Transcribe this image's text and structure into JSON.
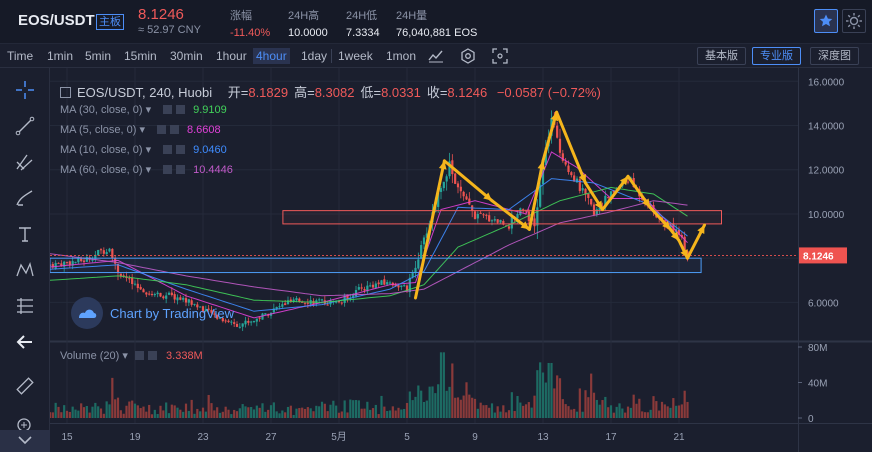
{
  "header": {
    "pair": "EOS/USDT",
    "badge": "主板",
    "price": "8.1246",
    "cny": "≈ 52.97 CNY",
    "stats": [
      {
        "label": "涨幅",
        "value": "-11.40%",
        "neg": true
      },
      {
        "label": "24H高",
        "value": "10.0000",
        "neg": false
      },
      {
        "label": "24H低",
        "value": "7.3334",
        "neg": false
      },
      {
        "label": "24H量",
        "value": "76,040,881 EOS",
        "neg": false
      }
    ],
    "star_icon": "star-icon",
    "theme_icon": "sun-icon"
  },
  "toolbar": {
    "timeframes": [
      "Time",
      "1min",
      "5min",
      "15min",
      "30min",
      "1hour",
      "4hour",
      "1day",
      "1week",
      "1mon"
    ],
    "active_timeframe": "4hour",
    "views": [
      "基本版",
      "专业版",
      "深度图"
    ],
    "active_view": "专业版"
  },
  "legend": {
    "symbol": "EOS/USDT, 240, Huobi",
    "ohlc": [
      {
        "k": "开=",
        "v": "8.1829"
      },
      {
        "k": "高=",
        "v": "8.3082"
      },
      {
        "k": "低=",
        "v": "8.0331"
      },
      {
        "k": "收=",
        "v": "8.1246"
      }
    ],
    "change": "−0.0587 (−0.72%)",
    "mas": [
      {
        "label": "MA (30, close, 0)",
        "value": "9.9109",
        "color": "#41d15a"
      },
      {
        "label": "MA (5, close, 0)",
        "value": "8.6608",
        "color": "#e040d8"
      },
      {
        "label": "MA (10, close, 0)",
        "value": "9.0460",
        "color": "#3f8cff"
      },
      {
        "label": "MA (60, close, 0)",
        "value": "10.4446",
        "color": "#c05ac8"
      }
    ],
    "volume_label": "Volume (20)",
    "volume_value": "3.338M"
  },
  "watermark": "Chart by TradingView",
  "chart_data": {
    "type": "candlestick",
    "price_axis": {
      "ticks": [
        6,
        8,
        10,
        12,
        14,
        16
      ],
      "tick_labels": [
        "6.0000",
        "8.0000",
        "10.0000",
        "12.0000",
        "14.0000",
        "16.0000"
      ],
      "range": [
        4.3,
        16.6
      ]
    },
    "last_price_label": "8.1246",
    "volume_axis": {
      "tick_labels": [
        "80M",
        "40M",
        "0"
      ],
      "range": [
        0,
        80
      ]
    },
    "x_axis": {
      "labels": [
        "15",
        "19",
        "23",
        "27",
        "5月",
        "5",
        "9",
        "13",
        "17",
        "21"
      ],
      "label_days": [
        15,
        19,
        23,
        27,
        31,
        35,
        39,
        43,
        47,
        51
      ],
      "day_range": [
        14,
        58
      ]
    },
    "close_path": [
      [
        14,
        7.7
      ],
      [
        16,
        7.9
      ],
      [
        17.5,
        8.5
      ],
      [
        18,
        7.4
      ],
      [
        19,
        6.7
      ],
      [
        20,
        6.4
      ],
      [
        21,
        6.3
      ],
      [
        22,
        6.1
      ],
      [
        23,
        5.7
      ],
      [
        24,
        5.3
      ],
      [
        25,
        5.0
      ],
      [
        26,
        5.2
      ],
      [
        27,
        5.6
      ],
      [
        28,
        6.0
      ],
      [
        29,
        6.1
      ],
      [
        30,
        6.0
      ],
      [
        31,
        6.0
      ],
      [
        32,
        6.5
      ],
      [
        33,
        6.8
      ],
      [
        34,
        6.9
      ],
      [
        35,
        6.6
      ],
      [
        36,
        8.8
      ],
      [
        37,
        11.3
      ],
      [
        37.5,
        12.2
      ],
      [
        38,
        11.1
      ],
      [
        39,
        9.9
      ],
      [
        40,
        9.8
      ],
      [
        41,
        9.5
      ],
      [
        41.8,
        10.4
      ],
      [
        42.5,
        9.4
      ],
      [
        43,
        12.2
      ],
      [
        43.5,
        14.3
      ],
      [
        44,
        12.8
      ],
      [
        45,
        11.4
      ],
      [
        46,
        10.1
      ],
      [
        47,
        10.9
      ],
      [
        48,
        11.6
      ],
      [
        49,
        10.6
      ],
      [
        50,
        9.6
      ],
      [
        51,
        9.2
      ],
      [
        51.5,
        8.1
      ]
    ],
    "ma_series": [
      {
        "name": "MA 5",
        "color": "#e040d8",
        "points": [
          [
            14,
            7.6
          ],
          [
            18,
            7.9
          ],
          [
            22,
            6.3
          ],
          [
            26,
            5.3
          ],
          [
            30,
            6.0
          ],
          [
            34,
            6.8
          ],
          [
            35.5,
            6.9
          ],
          [
            37,
            10.2
          ],
          [
            39,
            10.6
          ],
          [
            42,
            10.0
          ],
          [
            43.5,
            12.8
          ],
          [
            45,
            12.1
          ],
          [
            47,
            10.7
          ],
          [
            49,
            10.7
          ],
          [
            51.5,
            8.7
          ]
        ]
      },
      {
        "name": "MA 10",
        "color": "#3f8cff",
        "points": [
          [
            14,
            7.5
          ],
          [
            18,
            7.7
          ],
          [
            22,
            6.6
          ],
          [
            26,
            5.6
          ],
          [
            30,
            5.9
          ],
          [
            34,
            6.6
          ],
          [
            36,
            7.4
          ],
          [
            38,
            10.3
          ],
          [
            41,
            10.2
          ],
          [
            43.5,
            11.6
          ],
          [
            46,
            11.4
          ],
          [
            49,
            10.5
          ],
          [
            51.5,
            9.0
          ]
        ]
      },
      {
        "name": "MA 30",
        "color": "#41d15a",
        "points": [
          [
            14,
            7.0
          ],
          [
            18,
            7.2
          ],
          [
            22,
            6.8
          ],
          [
            26,
            6.1
          ],
          [
            30,
            6.0
          ],
          [
            34,
            6.3
          ],
          [
            36,
            6.8
          ],
          [
            38,
            8.5
          ],
          [
            41,
            9.5
          ],
          [
            44,
            10.6
          ],
          [
            47,
            11.2
          ],
          [
            49.5,
            10.9
          ],
          [
            51.5,
            9.9
          ]
        ]
      },
      {
        "name": "MA 60",
        "color": "#c05ac8",
        "points": [
          [
            14,
            8.2
          ],
          [
            18,
            7.8
          ],
          [
            22,
            7.2
          ],
          [
            26,
            6.7
          ],
          [
            30,
            6.3
          ],
          [
            34,
            6.4
          ],
          [
            36,
            6.6
          ],
          [
            38,
            7.4
          ],
          [
            41,
            8.6
          ],
          [
            44,
            9.6
          ],
          [
            47,
            10.1
          ],
          [
            49.5,
            10.6
          ],
          [
            51.5,
            10.4
          ]
        ]
      }
    ],
    "annotations": {
      "resistance_zone": {
        "price_from": 9.55,
        "price_to": 10.15,
        "day_from": 27.7,
        "day_to": 53.5
      },
      "support_zone": {
        "price_from": 7.35,
        "price_to": 8.0,
        "day_from": 14,
        "day_to": 52.3
      },
      "arrow_path": [
        [
          35.5,
          6.2
        ],
        [
          37.2,
          12.4
        ],
        [
          40,
          10.6
        ],
        [
          42.2,
          9.3
        ],
        [
          43,
          12.4
        ],
        [
          43.8,
          14.6
        ],
        [
          45.5,
          11.4
        ],
        [
          46.5,
          10.2
        ],
        [
          48,
          11.7
        ],
        [
          49.3,
          10.3
        ],
        [
          50.5,
          9.3
        ],
        [
          51,
          8.8
        ],
        [
          51.5,
          8.0
        ],
        [
          52.5,
          9.5
        ]
      ]
    }
  }
}
